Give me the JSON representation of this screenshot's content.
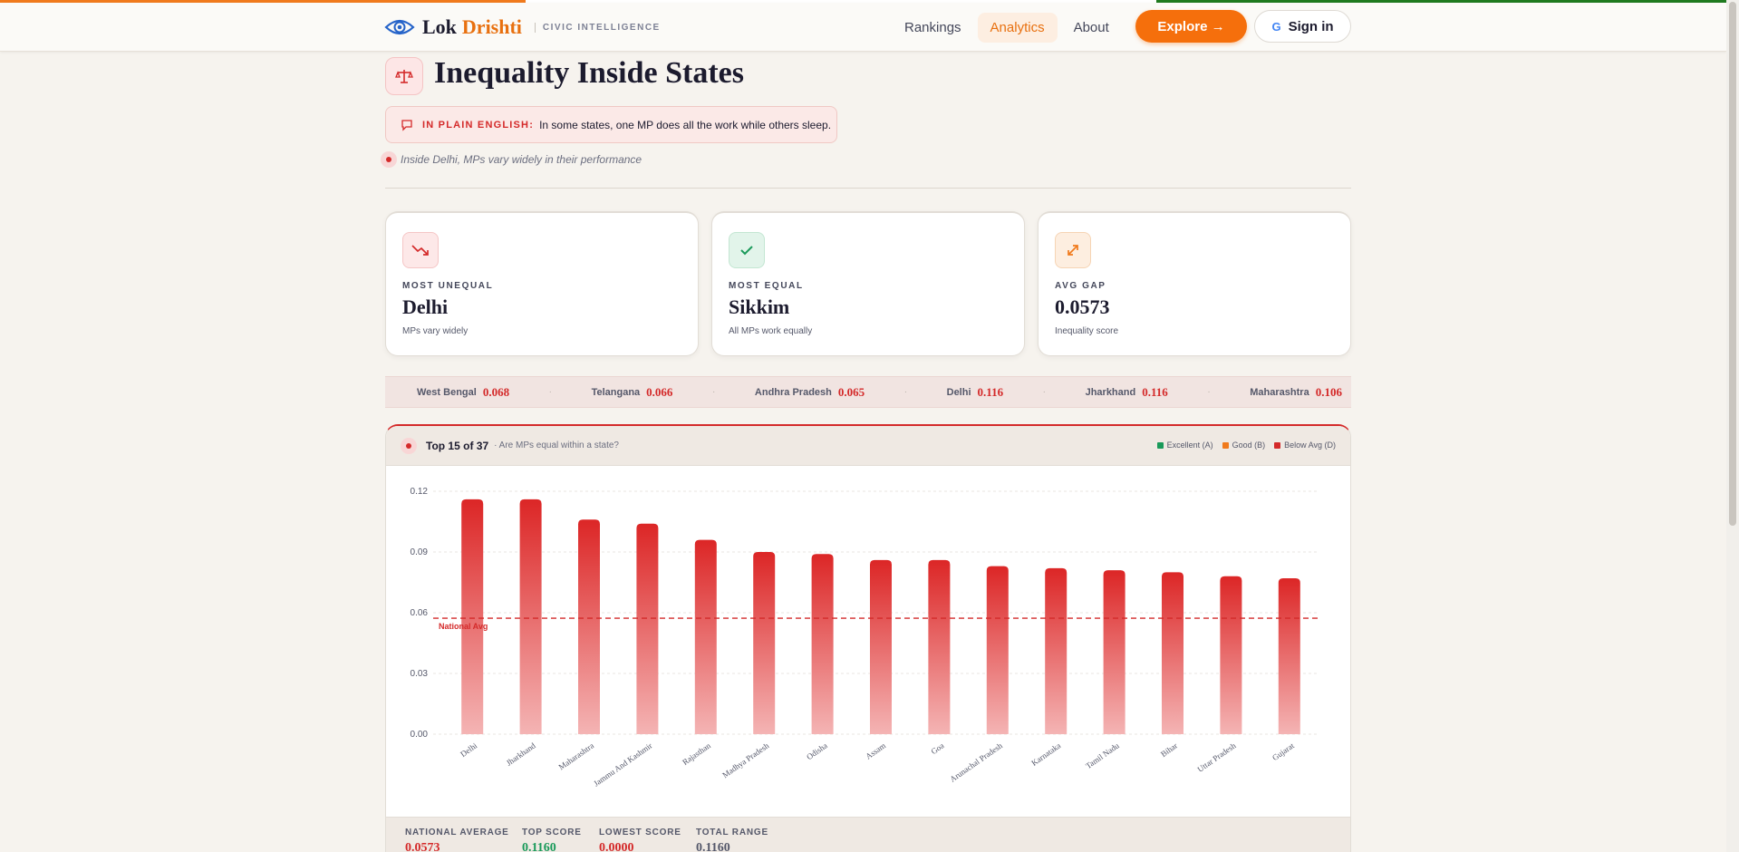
{
  "nav": {
    "brand_first": "Lok",
    "brand_second": "Drishti",
    "tagline": "CIVIC INTELLIGENCE",
    "links": [
      "Rankings",
      "Analytics",
      "About"
    ],
    "active_link": "Analytics",
    "explore_label": "Explore →",
    "signin_label": "Sign in"
  },
  "header": {
    "title": "Inequality Inside States",
    "plain_label": "IN PLAIN ENGLISH:",
    "plain_text": "In some states, one MP does all the work while others sleep.",
    "note": "Inside Delhi, MPs vary widely in their performance"
  },
  "cards": [
    {
      "caption": "MOST UNEQUAL",
      "value": "Delhi",
      "sub": "MPs vary widely",
      "color": "#d42a2a",
      "icon": "trend-down-icon"
    },
    {
      "caption": "MOST EQUAL",
      "value": "Sikkim",
      "sub": "All MPs work equally",
      "color": "#1a9a5a",
      "icon": "check-icon"
    },
    {
      "caption": "AVG GAP",
      "value": "0.0573",
      "sub": "Inequality score",
      "color": "#f07a1c",
      "icon": "expand-icon"
    }
  ],
  "ticker": [
    {
      "name": "West Bengal",
      "value": "0.068"
    },
    {
      "name": "Telangana",
      "value": "0.066"
    },
    {
      "name": "Andhra Pradesh",
      "value": "0.065"
    },
    {
      "name": "Delhi",
      "value": "0.116"
    },
    {
      "name": "Jharkhand",
      "value": "0.116"
    },
    {
      "name": "Maharashtra",
      "value": "0.106"
    }
  ],
  "panel": {
    "title": "Top 15 of 37",
    "subtitle": "· Are MPs equal within a state?",
    "legend": [
      {
        "label": "Excellent (A)",
        "color": "#1a9a5a"
      },
      {
        "label": "Good (B)",
        "color": "#f07a1c"
      },
      {
        "label": "Below Avg (D)",
        "color": "#d42a2a"
      }
    ]
  },
  "chart_data": {
    "type": "bar",
    "categories": [
      "Delhi",
      "Jharkhand",
      "Maharashtra",
      "Jammu And Kashmir",
      "Rajasthan",
      "Madhya Pradesh",
      "Odisha",
      "Assam",
      "Goa",
      "Arunachal Pradesh",
      "Karnataka",
      "Tamil Nadu",
      "Bihar",
      "Uttar Pradesh",
      "Gujarat"
    ],
    "values": [
      0.116,
      0.116,
      0.106,
      0.104,
      0.096,
      0.09,
      0.089,
      0.086,
      0.086,
      0.083,
      0.082,
      0.081,
      0.08,
      0.078,
      0.077
    ],
    "ylim": [
      0,
      0.12
    ],
    "yticks": [
      "0.00",
      "0.03",
      "0.06",
      "0.09",
      "0.12"
    ],
    "reference_line": {
      "label": "National Avg",
      "value": 0.0573
    },
    "bar_color_top": "#dc2626",
    "bar_color_bottom": "#f4b4b4",
    "grid": true
  },
  "footer_stats": [
    {
      "label": "NATIONAL AVERAGE",
      "value": "0.0573",
      "color": "#d42a2a"
    },
    {
      "label": "TOP SCORE",
      "value": "0.1160",
      "color": "#1a9a5a"
    },
    {
      "label": "LOWEST SCORE",
      "value": "0.0000",
      "color": "#d42a2a"
    },
    {
      "label": "TOTAL RANGE",
      "value": "0.1160",
      "color": "#55586a"
    }
  ]
}
